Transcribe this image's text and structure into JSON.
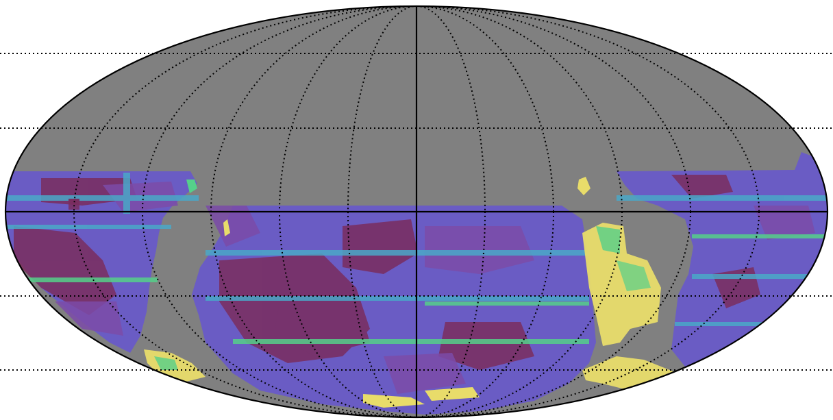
{
  "map": {
    "projection": "mollweide",
    "background_color": "#808080",
    "outline_color": "#000000",
    "graticule_style": "dotted",
    "palette": {
      "deep": "#7a2d5e",
      "purple": "#7b4ba8",
      "blue": "#5b78d6",
      "cyan": "#4aa8c8",
      "green": "#55d08a",
      "yellow": "#e8dc6a"
    },
    "meridian_count": 12,
    "parallel_count": 5
  }
}
